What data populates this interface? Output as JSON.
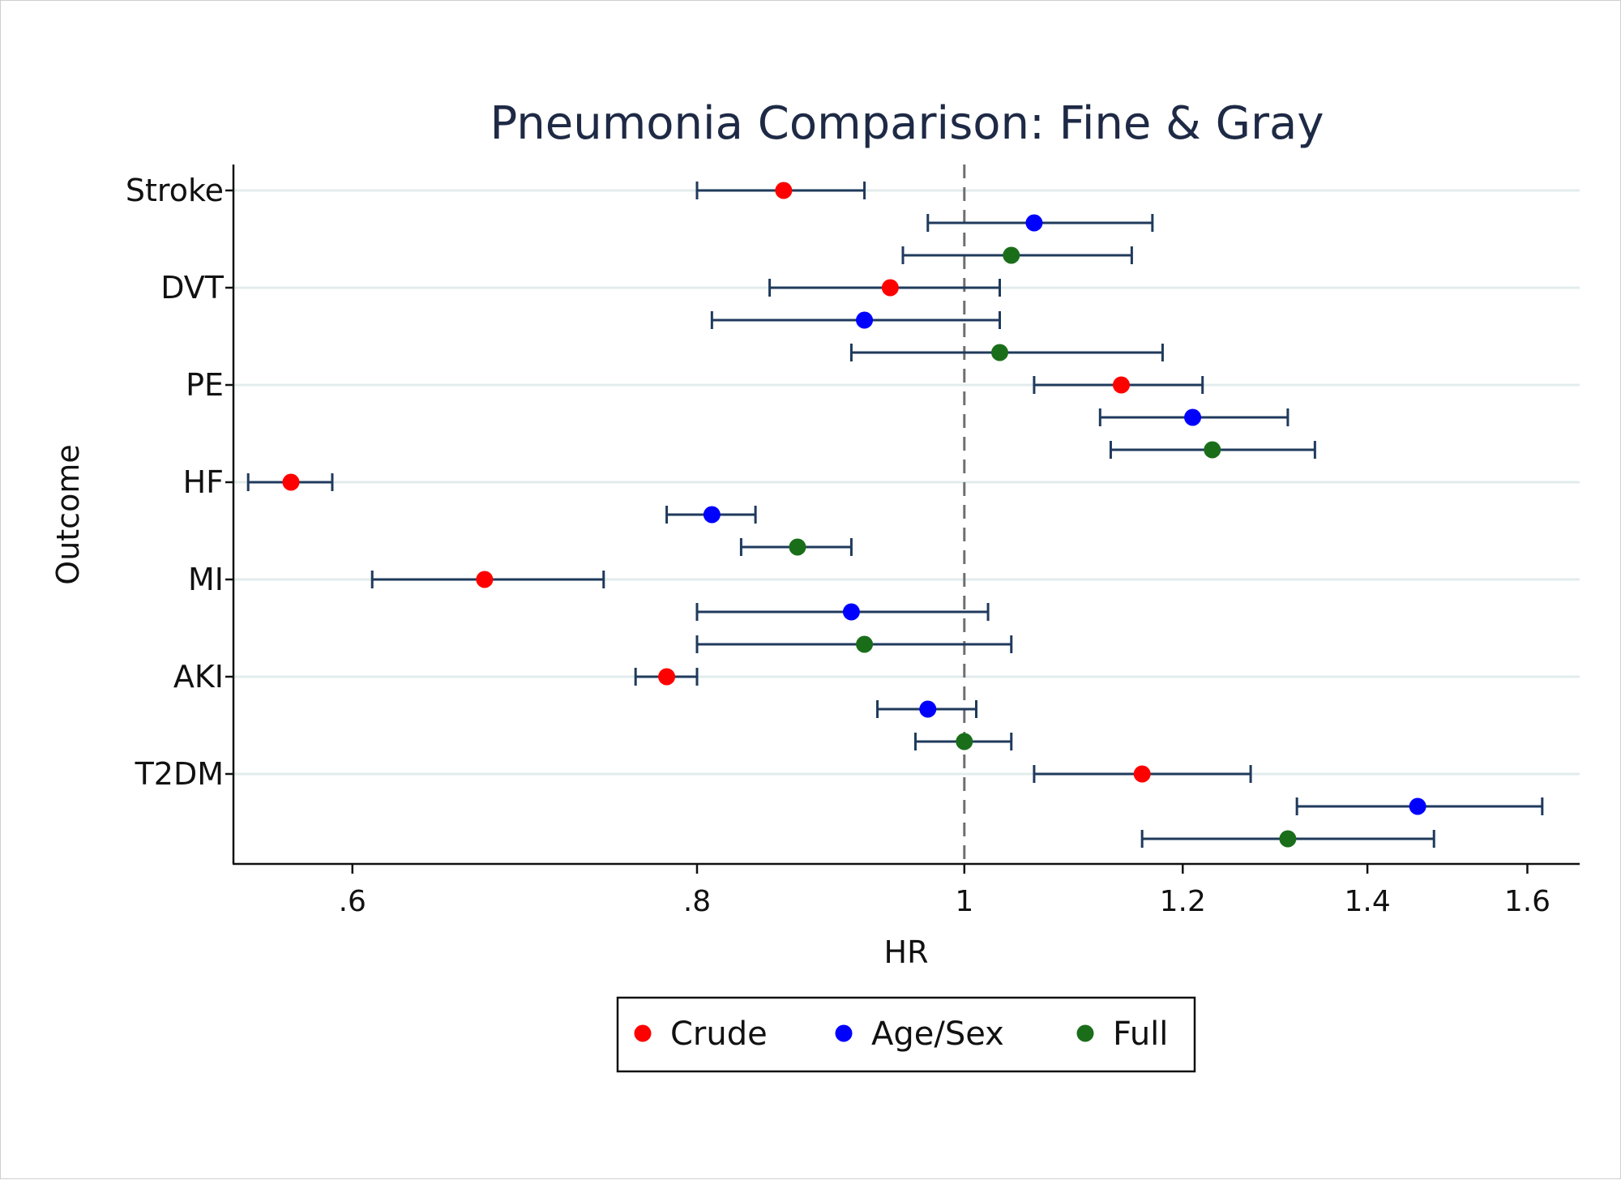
{
  "chart_data": {
    "type": "scatter",
    "title": "Pneumonia Comparison: Fine & Gray",
    "xlabel": "HR",
    "ylabel": "Outcome",
    "x_scale": "log",
    "xlim": [
      0.53,
      1.62
    ],
    "x_ticks": [
      {
        "value": 0.6,
        "label": ".6"
      },
      {
        "value": 0.8,
        "label": ".8"
      },
      {
        "value": 1.0,
        "label": "1"
      },
      {
        "value": 1.2,
        "label": "1.2"
      },
      {
        "value": 1.4,
        "label": "1.4"
      },
      {
        "value": 1.6,
        "label": "1.6"
      }
    ],
    "reference_line": 1,
    "grid": true,
    "legend_position": "bottom",
    "categories": [
      "Stroke",
      "DVT",
      "PE",
      "HF",
      "MI",
      "AKI",
      "T2DM"
    ],
    "series": [
      {
        "name": "Crude",
        "color": "#ff0000",
        "points": [
          {
            "outcome": "Stroke",
            "hr": 0.86,
            "lo": 0.8,
            "hi": 0.92
          },
          {
            "outcome": "DVT",
            "hr": 0.94,
            "lo": 0.85,
            "hi": 1.03
          },
          {
            "outcome": "PE",
            "hr": 1.14,
            "lo": 1.06,
            "hi": 1.22
          },
          {
            "outcome": "HF",
            "hr": 0.57,
            "lo": 0.55,
            "hi": 0.59
          },
          {
            "outcome": "MI",
            "hr": 0.67,
            "lo": 0.61,
            "hi": 0.74
          },
          {
            "outcome": "AKI",
            "hr": 0.78,
            "lo": 0.76,
            "hi": 0.8
          },
          {
            "outcome": "T2DM",
            "hr": 1.16,
            "lo": 1.06,
            "hi": 1.27
          }
        ]
      },
      {
        "name": "Age/Sex",
        "color": "#0000ff",
        "points": [
          {
            "outcome": "Stroke",
            "hr": 1.06,
            "lo": 0.97,
            "hi": 1.17
          },
          {
            "outcome": "DVT",
            "hr": 0.92,
            "lo": 0.81,
            "hi": 1.03
          },
          {
            "outcome": "PE",
            "hr": 1.21,
            "lo": 1.12,
            "hi": 1.31
          },
          {
            "outcome": "HF",
            "hr": 0.81,
            "lo": 0.78,
            "hi": 0.84
          },
          {
            "outcome": "MI",
            "hr": 0.91,
            "lo": 0.8,
            "hi": 1.02
          },
          {
            "outcome": "AKI",
            "hr": 0.97,
            "lo": 0.93,
            "hi": 1.01
          },
          {
            "outcome": "T2DM",
            "hr": 1.46,
            "lo": 1.32,
            "hi": 1.62
          }
        ]
      },
      {
        "name": "Full",
        "color": "#1a6e1a",
        "points": [
          {
            "outcome": "Stroke",
            "hr": 1.04,
            "lo": 0.95,
            "hi": 1.15
          },
          {
            "outcome": "DVT",
            "hr": 1.03,
            "lo": 0.91,
            "hi": 1.18
          },
          {
            "outcome": "PE",
            "hr": 1.23,
            "lo": 1.13,
            "hi": 1.34
          },
          {
            "outcome": "HF",
            "hr": 0.87,
            "lo": 0.83,
            "hi": 0.91
          },
          {
            "outcome": "MI",
            "hr": 0.92,
            "lo": 0.8,
            "hi": 1.04
          },
          {
            "outcome": "AKI",
            "hr": 1.0,
            "lo": 0.96,
            "hi": 1.04
          },
          {
            "outcome": "T2DM",
            "hr": 1.31,
            "lo": 1.16,
            "hi": 1.48
          }
        ]
      }
    ]
  }
}
